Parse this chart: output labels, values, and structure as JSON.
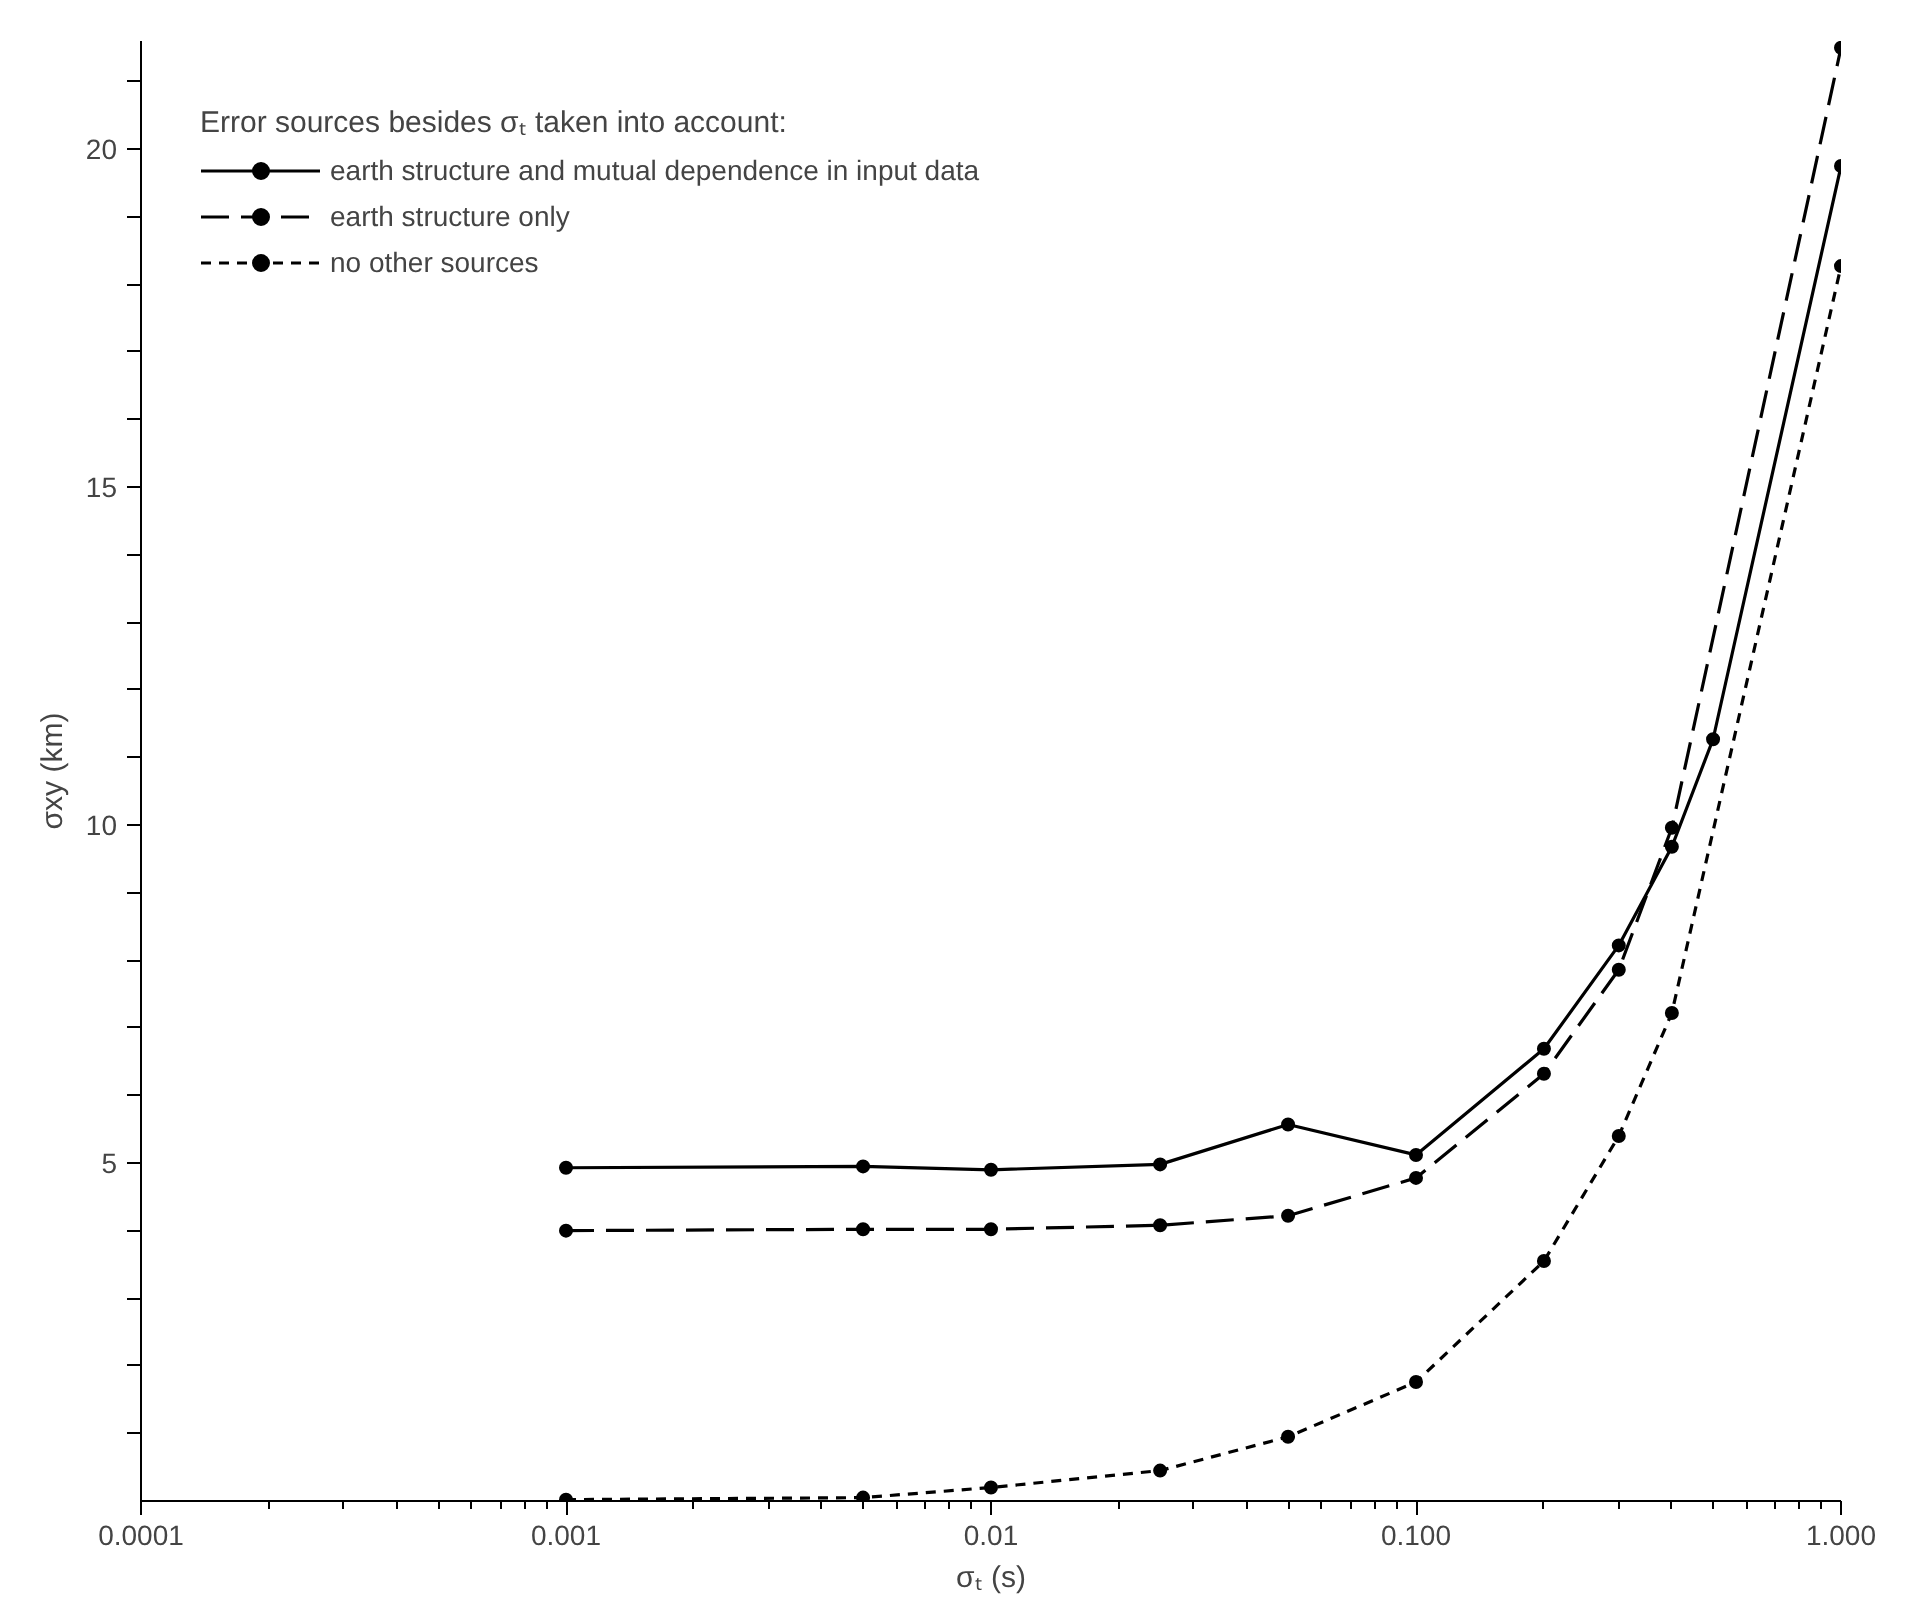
{
  "chart_data": {
    "type": "line",
    "xlabel": "σₜ (s)",
    "ylabel": "σxy (km)",
    "legend_title": "Error sources besides σₜ taken into account:",
    "log": "x",
    "xlim": [
      0.0001,
      1.0
    ],
    "ylim": [
      0,
      21.6
    ],
    "xticks": [
      {
        "value": 0.0001,
        "label": "0.0001"
      },
      {
        "value": 0.001,
        "label": "0.001"
      },
      {
        "value": 0.01,
        "label": "0.01"
      },
      {
        "value": 0.1,
        "label": "0.100"
      },
      {
        "value": 1.0,
        "label": "1.000"
      }
    ],
    "yticks": [
      {
        "value": 1,
        "label": null
      },
      {
        "value": 2,
        "label": null
      },
      {
        "value": 3,
        "label": null
      },
      {
        "value": 4,
        "label": null
      },
      5,
      {
        "value": 6,
        "label": null
      },
      {
        "value": 7,
        "label": null
      },
      {
        "value": 8,
        "label": null
      },
      {
        "value": 9,
        "label": null
      },
      10,
      {
        "value": 11,
        "label": null
      },
      {
        "value": 12,
        "label": null
      },
      {
        "value": 13,
        "label": null
      },
      {
        "value": 14,
        "label": null
      },
      15,
      {
        "value": 16,
        "label": null
      },
      {
        "value": 17,
        "label": null
      },
      {
        "value": 18,
        "label": null
      },
      {
        "value": 19,
        "label": null
      },
      20,
      {
        "value": 21,
        "label": null
      }
    ],
    "grid": false,
    "legend": "top left",
    "marker": "circle",
    "series": [
      {
        "name": "earth structure and mutual dependence in input data",
        "color": "#000000",
        "line_style": "solid",
        "x": [
          0.001,
          0.005,
          0.01,
          0.025,
          0.05,
          0.1,
          0.2,
          0.3,
          0.4,
          0.5,
          1.0
        ],
        "values": [
          4.93,
          4.95,
          4.9,
          4.98,
          5.57,
          5.12,
          6.69,
          8.22,
          9.68,
          11.27,
          19.75
        ]
      },
      {
        "name": "earth structure only",
        "color": "#000000",
        "line_style": "dashed",
        "x": [
          0.001,
          0.005,
          0.01,
          0.025,
          0.05,
          0.1,
          0.2,
          0.3,
          0.4,
          1.0
        ],
        "values": [
          4.0,
          4.02,
          4.02,
          4.08,
          4.22,
          4.78,
          6.32,
          7.86,
          9.96,
          21.5
        ]
      },
      {
        "name": "no other sources",
        "color": "#000000",
        "line_style": "dotted",
        "x": [
          0.001,
          0.005,
          0.01,
          0.025,
          0.05,
          0.1,
          0.2,
          0.3,
          0.4,
          1.0
        ],
        "values": [
          0.02,
          0.05,
          0.2,
          0.45,
          0.95,
          1.76,
          3.55,
          5.4,
          7.22,
          18.27
        ]
      }
    ]
  }
}
